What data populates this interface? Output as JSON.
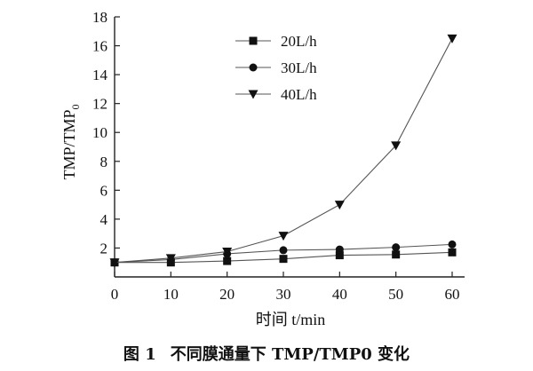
{
  "chart_data": {
    "type": "line",
    "xlabel": "时间 t/min",
    "ylabel": "TMP/TMP",
    "ylabel_subscript": "0",
    "xlim": [
      0,
      60
    ],
    "ylim": [
      0,
      18
    ],
    "xticks": [
      0,
      10,
      20,
      30,
      40,
      50,
      60
    ],
    "yticks": [
      2,
      4,
      6,
      8,
      10,
      12,
      14,
      16,
      18
    ],
    "grid": false,
    "legend_position": "top-left",
    "x": [
      0,
      10,
      20,
      30,
      40,
      50,
      60
    ],
    "series": [
      {
        "name": "20L/h",
        "marker": "square",
        "values": [
          1.0,
          1.0,
          1.1,
          1.25,
          1.5,
          1.55,
          1.7
        ]
      },
      {
        "name": "30L/h",
        "marker": "circle",
        "values": [
          1.0,
          1.2,
          1.6,
          1.85,
          1.9,
          2.05,
          2.25
        ]
      },
      {
        "name": "40L/h",
        "marker": "triangle-down",
        "values": [
          1.0,
          1.3,
          1.75,
          2.85,
          5.0,
          9.1,
          16.5
        ]
      }
    ]
  },
  "caption": {
    "prefix": "图 1",
    "text": "不同膜通量下 TMP/TMP0 变化"
  }
}
